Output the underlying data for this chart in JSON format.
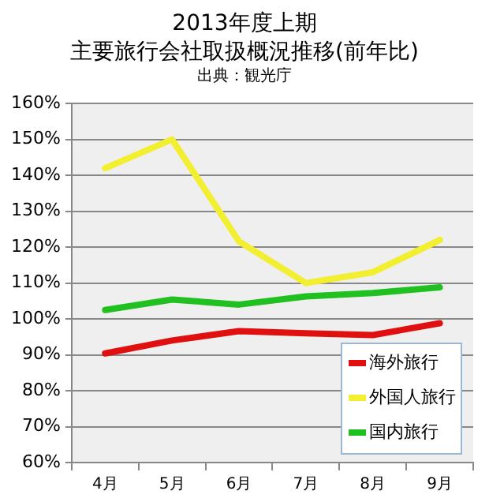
{
  "chart_data": {
    "type": "line",
    "title": "2013年度上期",
    "subtitle": "主要旅行会社取扱概況推移(前年比)",
    "annotations": [
      "出典：観光庁"
    ],
    "categories": [
      "4月",
      "5月",
      "6月",
      "7月",
      "8月",
      "9月"
    ],
    "series": [
      {
        "name": "海外旅行",
        "color": "#e01010",
        "values": [
          90.4,
          94,
          96.6,
          96,
          95.5,
          98.8
        ]
      },
      {
        "name": "外国人旅行",
        "color": "#f2ee30",
        "values": [
          142,
          150,
          121.6,
          110,
          113,
          122
        ]
      },
      {
        "name": "国内旅行",
        "color": "#20c020",
        "values": [
          102.5,
          105.4,
          104,
          106.3,
          107.2,
          108.8
        ]
      }
    ],
    "ylim": [
      60,
      160
    ],
    "yticks": [
      {
        "value": 60,
        "label": "60%"
      },
      {
        "value": 70,
        "label": "70%"
      },
      {
        "value": 80,
        "label": "80%"
      },
      {
        "value": 90,
        "label": "90%"
      },
      {
        "value": 100,
        "label": "100%"
      },
      {
        "value": 110,
        "label": "110%"
      },
      {
        "value": 120,
        "label": "120%"
      },
      {
        "value": 130,
        "label": "130%"
      },
      {
        "value": 140,
        "label": "140%"
      },
      {
        "value": 150,
        "label": "150%"
      },
      {
        "value": 160,
        "label": "160%"
      }
    ],
    "grid": "y",
    "legend": "bottom right",
    "marker": "none",
    "line_style": "solid"
  }
}
